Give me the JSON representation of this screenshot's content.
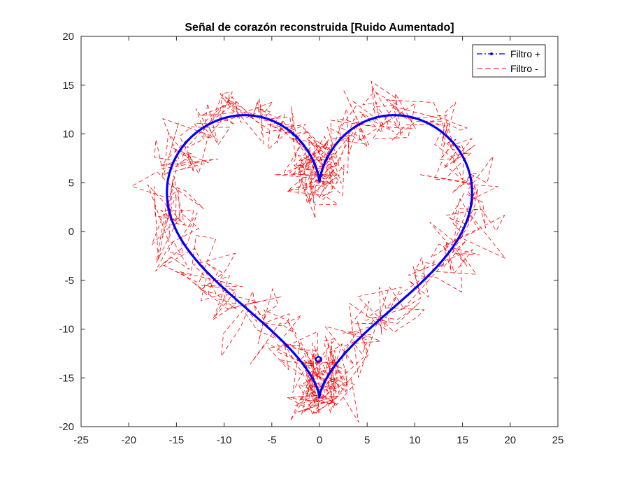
{
  "chart_data": {
    "type": "line",
    "title": "Señal de corazón reconstruida [Ruido Aumentado]",
    "xlabel": "",
    "ylabel": "",
    "xlim": [
      -25,
      25
    ],
    "ylim": [
      -20,
      20
    ],
    "xticks": [
      -25,
      -20,
      -15,
      -10,
      -5,
      0,
      5,
      10,
      15,
      20,
      25
    ],
    "yticks": [
      -20,
      -15,
      -10,
      -5,
      0,
      5,
      10,
      15,
      20
    ],
    "grid": false,
    "legend_position": "top-right",
    "series": [
      {
        "name": "Filtro +",
        "color": "#0000ff",
        "style": "dash-dot with point markers",
        "curve": "heart: x = 16 sin^3(t), y = 13 cos(t) - 5 cos(2t) - 2 cos(3t) - cos(4t)",
        "points": [
          [
            0.0,
            5.0
          ],
          [
            1.53,
            5.29
          ],
          [
            4.46,
            6.72
          ],
          [
            5.53,
            9.52
          ],
          [
            5.3,
            11.26
          ],
          [
            5.0,
            11.2
          ],
          [
            3.74,
            10.44
          ],
          [
            2.24,
            9.51
          ],
          [
            0.9,
            8.77
          ],
          [
            0.13,
            8.19
          ],
          [
            0.0,
            8.0
          ],
          [
            0.13,
            8.19
          ],
          [
            0.9,
            8.77
          ],
          [
            2.24,
            9.51
          ],
          [
            3.74,
            10.44
          ],
          [
            5.3,
            11.26
          ],
          [
            5.53,
            9.52
          ],
          [
            4.46,
            6.72
          ],
          [
            1.53,
            5.29
          ],
          [
            0.0,
            5.0
          ],
          [
            -1.53,
            4.69
          ],
          [
            -4.46,
            2.29
          ],
          [
            -5.53,
            -0.48
          ],
          [
            -5.3,
            -2.34
          ],
          [
            -5.0,
            -3.06
          ],
          [
            -3.74,
            -2.21
          ],
          [
            -2.24,
            -0.82
          ],
          [
            -0.9,
            1.59
          ],
          [
            -0.13,
            4.13
          ],
          [
            0.0,
            5.0
          ]
        ]
      },
      {
        "name": "Filtro -",
        "color": "#ff0000",
        "style": "dashed",
        "description": "Same heart curve with increased random noise (amplitude about 2.5)"
      }
    ]
  }
}
